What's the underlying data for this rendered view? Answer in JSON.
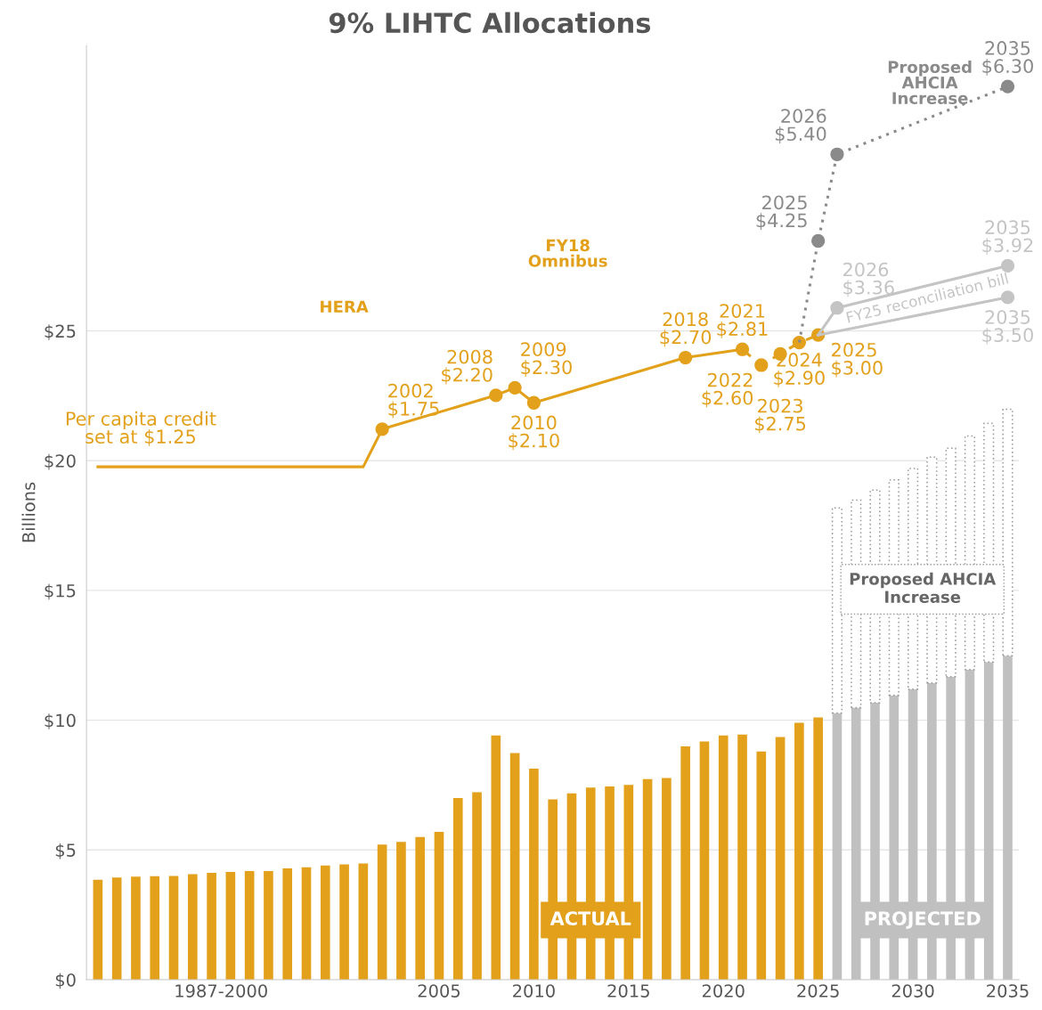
{
  "chart_data": {
    "type": "bar",
    "title": "9% LIHTC Allocations",
    "ylabel": "Billions",
    "stacked": true,
    "grid": "y",
    "xlim": [
      1986.4,
      2035.6
    ],
    "xticks": [
      {
        "value": 1993.5,
        "label": "1987-2000"
      },
      2005,
      2010,
      2015,
      2020,
      2025,
      2030,
      2035
    ],
    "ylim": [
      0,
      36
    ],
    "yticks": [
      {
        "value": 0,
        "label": "$0"
      },
      {
        "value": 5,
        "label": "$5"
      },
      {
        "value": 10,
        "label": "$10"
      },
      {
        "value": 15,
        "label": "$15"
      },
      {
        "value": 20,
        "label": "$20"
      },
      {
        "value": 25,
        "label": "$25"
      }
    ],
    "x": [
      1987,
      1988,
      1989,
      1990,
      1991,
      1992,
      1993,
      1994,
      1995,
      1996,
      1997,
      1998,
      1999,
      2000,
      2001,
      2002,
      2003,
      2004,
      2005,
      2006,
      2007,
      2008,
      2009,
      2010,
      2011,
      2012,
      2013,
      2014,
      2015,
      2016,
      2017,
      2018,
      2019,
      2020,
      2021,
      2022,
      2023,
      2024,
      2025,
      2026,
      2027,
      2028,
      2029,
      2030,
      2031,
      2032,
      2033,
      2034,
      2035
    ],
    "series": [
      {
        "name": "ACTUAL",
        "color": "#e3a01b",
        "values": [
          3.85,
          3.94,
          3.97,
          3.99,
          4.0,
          4.07,
          4.12,
          4.15,
          4.19,
          4.19,
          4.29,
          4.33,
          4.4,
          4.44,
          4.48,
          5.21,
          5.31,
          5.5,
          5.7,
          7.0,
          7.22,
          9.41,
          8.73,
          8.13,
          6.95,
          7.18,
          7.4,
          7.45,
          7.51,
          7.73,
          7.77,
          8.99,
          9.18,
          9.41,
          9.45,
          8.79,
          9.35,
          9.9,
          10.11,
          null,
          null,
          null,
          null,
          null,
          null,
          null,
          null,
          null,
          null
        ]
      },
      {
        "name": "PROJECTED",
        "color": "#c0c0c0",
        "values": [
          null,
          null,
          null,
          null,
          null,
          null,
          null,
          null,
          null,
          null,
          null,
          null,
          null,
          null,
          null,
          null,
          null,
          null,
          null,
          null,
          null,
          null,
          null,
          null,
          null,
          null,
          null,
          null,
          null,
          null,
          null,
          null,
          null,
          null,
          null,
          null,
          null,
          null,
          null,
          10.28,
          10.48,
          10.67,
          10.96,
          11.2,
          11.44,
          11.68,
          11.95,
          12.24,
          12.48
        ]
      },
      {
        "name": "Proposed AHCIA Increase",
        "color": "#ffffff",
        "line_style": "dotted",
        "values": [
          null,
          null,
          null,
          null,
          null,
          null,
          null,
          null,
          null,
          null,
          null,
          null,
          null,
          null,
          null,
          null,
          null,
          null,
          null,
          null,
          null,
          null,
          null,
          null,
          null,
          null,
          null,
          null,
          null,
          null,
          null,
          null,
          null,
          null,
          null,
          null,
          null,
          null,
          null,
          7.9,
          8.0,
          8.2,
          8.3,
          8.5,
          8.7,
          8.8,
          9.0,
          9.2,
          9.5
        ]
      },
      {
        "type": "line",
        "axis": "y2",
        "color": "#e3a01b",
        "line_style": "solid",
        "marker": "circle",
        "x": [
          1987,
          2001,
          2002,
          2008,
          2009,
          2010,
          2018,
          2021
        ],
        "values": [
          1.25,
          1.25,
          1.75,
          2.2,
          2.3,
          2.1,
          2.7,
          2.81
        ],
        "value_labels": [
          null,
          null,
          "2002\n$1.75",
          "2008\n$2.20",
          "2009\n$2.30",
          "2010\n$2.10",
          "2018\n$2.70",
          "2021\n$2.81"
        ]
      },
      {
        "type": "line",
        "axis": "y2",
        "color": "#e3a01b",
        "line_style": "dashed",
        "marker": "circle",
        "x": [
          2021,
          2022,
          2023,
          2024,
          2025
        ],
        "values": [
          2.81,
          2.6,
          2.75,
          2.9,
          3.0
        ],
        "value_labels": [
          null,
          "2022\n$2.60",
          "2023\n$2.75",
          "2024\n$2.90",
          "2025\n$3.00"
        ]
      },
      {
        "name": "Proposed AHCIA Increase",
        "type": "line",
        "axis": "y2",
        "color": "#8a8a8a",
        "line_style": "dotted",
        "marker": "circle",
        "x": [
          2024,
          2025,
          2026,
          2035
        ],
        "values": [
          2.9,
          4.25,
          5.4,
          6.3
        ],
        "value_labels": [
          null,
          "2025\n$4.25",
          "2026\n$5.40",
          "2035\n$6.30"
        ]
      },
      {
        "name": "FY25 reconciliation bill",
        "type": "line",
        "axis": "y2",
        "color": "#c4c4c4",
        "line_style": "solid",
        "marker": "circle",
        "x": [
          2025,
          2026,
          2035
        ],
        "values": [
          3.0,
          3.36,
          3.92
        ],
        "value_labels": [
          null,
          "2026\n$3.36",
          "2035\n$3.92"
        ]
      },
      {
        "type": "line",
        "axis": "y2",
        "color": "#c4c4c4",
        "line_style": "solid",
        "marker": "circle",
        "x": [
          2025,
          2035
        ],
        "values": [
          3.0,
          3.5
        ],
        "value_labels": [
          null,
          "2035\n$3.50"
        ]
      }
    ],
    "annotations": [
      "Per capita credit set at $1.25",
      "HERA",
      "FY18 Omnibus"
    ]
  }
}
